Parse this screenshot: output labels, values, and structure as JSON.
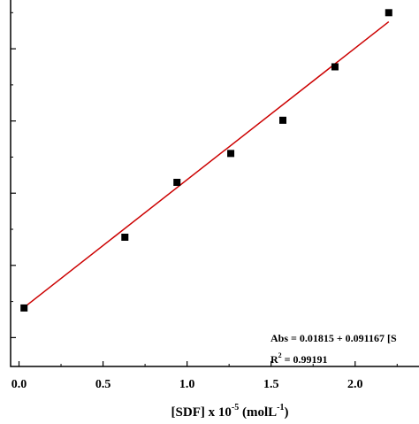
{
  "chart_data": {
    "type": "scatter",
    "xlabel_parts": {
      "base": "[SDF] x 10",
      "exp": "-5",
      "unit_base": " (molL",
      "unit_exp": "-1",
      "close": ")"
    },
    "xlim": [
      -0.05,
      2.38
    ],
    "ylim": [
      -0.02,
      0.235
    ],
    "x_ticks": [
      0.0,
      0.5,
      1.0,
      1.5,
      2.0
    ],
    "x_tick_labels": [
      "0.0",
      "0.5",
      "1.0",
      "1.5",
      "2.0"
    ],
    "y_ticks": [
      0.0,
      0.05,
      0.1,
      0.15,
      0.2
    ],
    "grid": false,
    "series": [
      {
        "points": [
          {
            "x": 0.03,
            "y": 0.0205
          },
          {
            "x": 0.63,
            "y": 0.0695
          },
          {
            "x": 0.94,
            "y": 0.1075
          },
          {
            "x": 1.26,
            "y": 0.1275
          },
          {
            "x": 1.57,
            "y": 0.1505
          },
          {
            "x": 1.88,
            "y": 0.1875
          },
          {
            "x": 2.2,
            "y": 0.225
          }
        ],
        "color": "#000000",
        "marker": "square"
      }
    ],
    "fit": {
      "intercept": 0.01815,
      "slope": 0.091167,
      "x_range": [
        0.03,
        2.2
      ],
      "color": "#cc0000"
    },
    "annotations": {
      "equation": "Abs = 0.01815 + 0.091167 [S",
      "r2_label_base": "R",
      "r2_label_exp": "2",
      "r2_value": " = 0.99191"
    }
  }
}
